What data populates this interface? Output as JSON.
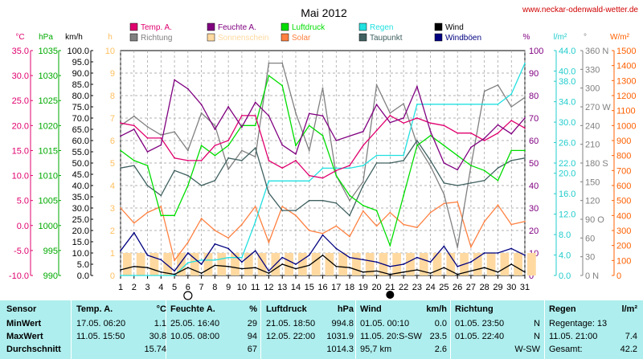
{
  "header": {
    "month_title": "Mai 2012",
    "site": "www.neckar-odenwald-wetter.de"
  },
  "legend": [
    {
      "label": "Temp. A.",
      "color": "#e0006e"
    },
    {
      "label": "Richtung",
      "color": "#808080"
    },
    {
      "label": "Feuchte A.",
      "color": "#800080"
    },
    {
      "label": "Sonnenschein",
      "color": "#ffd9a0"
    },
    {
      "label": "Luftdruck",
      "color": "#00dd00"
    },
    {
      "label": "Solar",
      "color": "#ff8040"
    },
    {
      "label": "Regen",
      "color": "#22e0e0"
    },
    {
      "label": "Taupunkt",
      "color": "#406060"
    },
    {
      "label": "Wind",
      "color": "#000000"
    },
    {
      "label": "Windböen",
      "color": "#000080"
    }
  ],
  "axis_units": {
    "temp": "°C",
    "pressure": "hPa",
    "wind": "km/h",
    "sun": "h",
    "humidity": "%",
    "rain": "l/m²",
    "direction": "°",
    "solar": "W/m²"
  },
  "axes": {
    "temp_ticks": [
      "35.0",
      "30.0",
      "25.0",
      "20.0",
      "15.0",
      "10.0",
      "5.0",
      "0.0",
      "-5.0",
      "-10.0"
    ],
    "pressure_ticks": [
      "1035",
      "1030",
      "1025",
      "1020",
      "1015",
      "1010",
      "1005",
      "1000",
      "995",
      "990"
    ],
    "wind_ticks": [
      "100.0",
      "95.0",
      "90.0",
      "85.0",
      "80.0",
      "75.0",
      "70.0",
      "65.0",
      "60.0",
      "55.0",
      "50.0",
      "45.0",
      "40.0",
      "35.0",
      "30.0",
      "25.0",
      "20.0",
      "15.0",
      "10.0",
      "5.0",
      "0.0"
    ],
    "sun_ticks": [
      "10",
      "9",
      "8",
      "7",
      "6",
      "5",
      "4",
      "3",
      "2",
      "1",
      "0"
    ],
    "humidity_ticks": [
      "100",
      "90",
      "80",
      "70",
      "60",
      "50",
      "40",
      "30",
      "20",
      "10",
      "0"
    ],
    "rain_ticks": [
      "44.0",
      "40.0",
      "38.0",
      "34.0",
      "30.0",
      "26.0",
      "22.0",
      "20.0",
      "16.0",
      "12.0",
      "8.0",
      "4.0",
      "0.0"
    ],
    "direction_ticks": [
      "360 N",
      "330",
      "300",
      "270 W",
      "240",
      "210",
      "180 S",
      "150",
      "120",
      "90 O",
      "60",
      "30",
      "0 N"
    ],
    "solar_ticks": [
      "1500",
      "1400",
      "1300",
      "1200",
      "1100",
      "1000",
      "900",
      "800",
      "700",
      "600",
      "500",
      "400",
      "300",
      "200",
      "100",
      "0"
    ],
    "day_labels": [
      "1",
      "2",
      "3",
      "4",
      "5",
      "6",
      "7",
      "8",
      "9",
      "10",
      "11",
      "12",
      "13",
      "14",
      "15",
      "16",
      "17",
      "18",
      "19",
      "20",
      "21",
      "22",
      "23",
      "24",
      "25",
      "26",
      "27",
      "28",
      "29",
      "30",
      "31"
    ],
    "moon_new_day": 6,
    "moon_full_day": 21
  },
  "chart_data": {
    "type": "line",
    "title": "Mai 2012",
    "x": [
      1,
      2,
      3,
      4,
      5,
      6,
      7,
      8,
      9,
      10,
      11,
      12,
      13,
      14,
      15,
      16,
      17,
      18,
      19,
      20,
      21,
      22,
      23,
      24,
      25,
      26,
      27,
      28,
      29,
      30,
      31
    ],
    "xlabel": "",
    "xlim": [
      1,
      31
    ],
    "grid": true,
    "series": [
      {
        "name": "Temp. A.",
        "axis": "temp",
        "color": "#e0006e",
        "values": [
          20.5,
          20,
          17.5,
          17.5,
          13.5,
          13,
          13,
          16,
          17,
          22,
          22,
          13,
          11.5,
          13,
          10,
          9.5,
          11,
          12,
          16,
          19,
          22,
          20.5,
          21.5,
          20.5,
          20,
          18.5,
          18.5,
          17,
          18.5,
          21,
          19.5
        ]
      },
      {
        "name": "Feuchte A.",
        "axis": "humidity",
        "color": "#800080",
        "values": [
          62,
          65,
          55,
          58,
          87,
          83,
          76,
          65,
          75,
          66,
          77,
          71,
          58,
          54,
          72,
          71,
          60,
          62,
          64,
          76,
          68,
          70,
          84,
          64,
          50,
          47,
          57,
          61,
          67,
          63,
          70
        ]
      },
      {
        "name": "Luftdruck",
        "axis": "pressure",
        "color": "#00dd00",
        "values": [
          1015,
          1013,
          1012,
          1002,
          1002,
          1008,
          1016,
          1014,
          1016,
          1020,
          1020,
          1030,
          1028,
          1016,
          1020,
          1018,
          1010,
          1006,
          1004,
          1003,
          996,
          1006,
          1016,
          1018,
          1016,
          1014,
          1012,
          1011,
          1009,
          1015,
          1015
        ]
      },
      {
        "name": "Richtung",
        "axis": "direction",
        "color": "#808080",
        "values": [
          240,
          255,
          238,
          225,
          230,
          200,
          260,
          240,
          170,
          200,
          190,
          340,
          340,
          260,
          200,
          300,
          160,
          120,
          150,
          305,
          260,
          275,
          210,
          175,
          130,
          45,
          175,
          295,
          305,
          270,
          285
        ]
      },
      {
        "name": "Taupunkt",
        "axis": "temp",
        "color": "#406060",
        "values": [
          11.5,
          12,
          8,
          6,
          11,
          10,
          8,
          9,
          13.5,
          13,
          15.5,
          6.5,
          3,
          3,
          5,
          5,
          4.5,
          2,
          8,
          12.5,
          12.5,
          13,
          17,
          13,
          8.5,
          8,
          8.5,
          9,
          11.5,
          13,
          13.5
        ]
      },
      {
        "name": "Regen",
        "axis": "rain",
        "color": "#22e0e0",
        "values": [
          0,
          0,
          0,
          0,
          0,
          2.5,
          3,
          3,
          3.5,
          3.5,
          10.5,
          18.5,
          18.5,
          18.5,
          18.5,
          21,
          21,
          21,
          21.5,
          23.5,
          23.5,
          23.5,
          33.5,
          33.5,
          33.5,
          33.5,
          33.5,
          33.5,
          33.5,
          35.5,
          41.5
        ]
      },
      {
        "name": "Solar",
        "axis": "solar",
        "color": "#ff8040",
        "values": [
          450,
          350,
          420,
          460,
          100,
          220,
          380,
          300,
          250,
          340,
          460,
          220,
          460,
          400,
          300,
          280,
          330,
          260,
          430,
          330,
          420,
          340,
          320,
          420,
          480,
          490,
          190,
          360,
          470,
          340,
          360
        ]
      },
      {
        "name": "Sonnenschein",
        "axis": "sun",
        "type": "bar",
        "color": "#ffd9a0",
        "values": [
          1,
          1,
          1,
          1,
          1,
          1,
          1,
          1,
          1,
          1,
          1,
          1,
          1,
          1,
          1,
          1,
          1,
          1,
          1,
          1,
          1,
          1,
          1,
          1,
          1,
          1,
          1,
          1,
          1,
          1,
          1
        ]
      },
      {
        "name": "Wind",
        "axis": "wind",
        "color": "#000000",
        "values": [
          2.5,
          4,
          3.5,
          1.5,
          0.5,
          3.5,
          1,
          4.5,
          4,
          3,
          3.5,
          1,
          5,
          3,
          4.5,
          9,
          4,
          3.5,
          1.5,
          2,
          0.5,
          1.5,
          2.5,
          1,
          3.5,
          0.5,
          2,
          3.5,
          1.5,
          5,
          1.5
        ]
      },
      {
        "name": "Windböen",
        "axis": "wind",
        "color": "#000080",
        "values": [
          11,
          19,
          9,
          7,
          2,
          10,
          5,
          14,
          12,
          6,
          11,
          2,
          8,
          5,
          9,
          18,
          12,
          8,
          7,
          6,
          4,
          5,
          8,
          6,
          13,
          4,
          6,
          10,
          10,
          12,
          9
        ]
      }
    ]
  },
  "stats": {
    "row_labels": [
      "Sensor",
      "MinWert",
      "MaxWert",
      "Durchschnitt"
    ],
    "columns": [
      {
        "title": "Temp. A.",
        "unit": "°C",
        "min_time": "17.05.  06:20",
        "min": "1.1",
        "max_time": "11.05.  15:50",
        "max": "30.8",
        "avg": "15.74"
      },
      {
        "title": "Feuchte A.",
        "unit": "%",
        "min_time": "25.05.  16:40",
        "min": "29",
        "max_time": "10.05.  08:00",
        "max": "94",
        "avg": "67"
      },
      {
        "title": "Luftdruck",
        "unit": "hPa",
        "min_time": "21.05.  18:50",
        "min": "994.8",
        "max_time": "12.05.  22:00",
        "max": "1031.9",
        "avg": "1014.3"
      },
      {
        "title": "Wind",
        "unit": "km/h",
        "min_time": "01.05.  00:10",
        "min": "0.0",
        "max_time": "11.05.  20:S-SW",
        "max": "23.5",
        "avg_prefix": "95,7 km",
        "avg": "2.6"
      },
      {
        "title": "Richtung",
        "unit": "",
        "min_time": "01.05.  23:50",
        "min": "N",
        "max_time": "01.05.  22:40",
        "max": "N",
        "avg": "W-SW"
      },
      {
        "title": "Regen",
        "unit": "l/m²",
        "min_label": "Regentage: 13",
        "max_time": "11.05.  21:00",
        "max": "7.4",
        "avg_prefix": "Gesamt:",
        "avg": "42.2"
      }
    ]
  }
}
